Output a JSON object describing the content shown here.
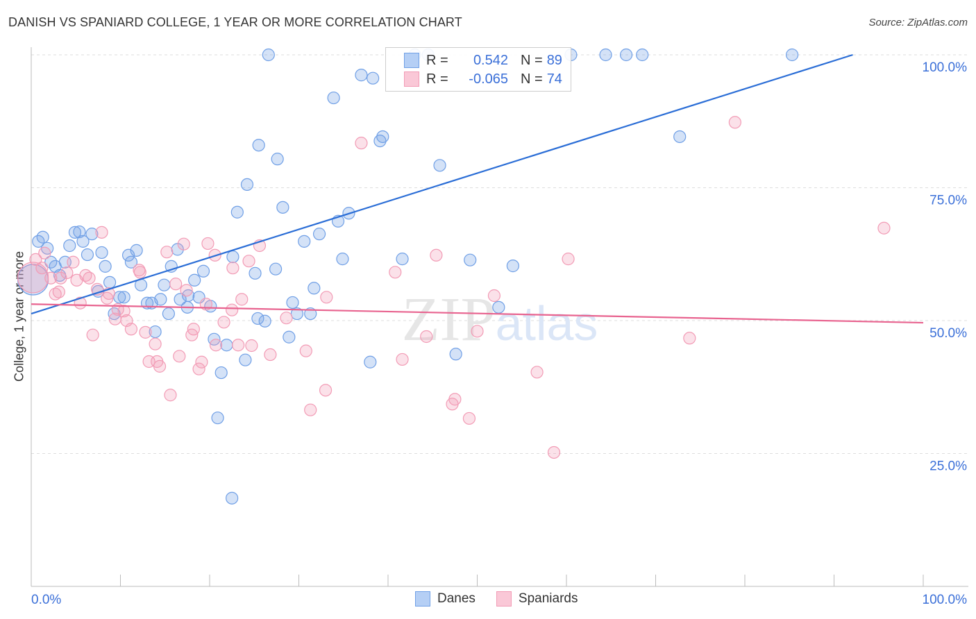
{
  "chart_data": {
    "type": "scatter",
    "title": "DANISH VS SPANIARD COLLEGE, 1 YEAR OR MORE CORRELATION CHART",
    "source": "Source: ZipAtlas.com",
    "xlabel": "",
    "ylabel": "College, 1 year or more",
    "xlim": [
      0,
      100
    ],
    "ylim": [
      0,
      100
    ],
    "x_tick_labels": [
      "0.0%",
      "100.0%"
    ],
    "y_tick_labels": [
      {
        "value": 100,
        "label": "100.0%"
      },
      {
        "value": 75,
        "label": "75.0%"
      },
      {
        "value": 50,
        "label": "50.0%"
      },
      {
        "value": 25,
        "label": "25.0%"
      }
    ],
    "grid": true,
    "legend_placement": "top-center",
    "watermark": "ZIPatlas",
    "series": [
      {
        "name": "Danes",
        "color": "#6f9fe6",
        "line_color": "#2a6dd6",
        "R": "0.542",
        "N": "89",
        "trend": [
          [
            0,
            51.3
          ],
          [
            92.1,
            100
          ]
        ],
        "points": [
          [
            26.6,
            100
          ],
          [
            43.0,
            100
          ],
          [
            44.5,
            100
          ],
          [
            60.5,
            100
          ],
          [
            64.4,
            100
          ],
          [
            66.7,
            100
          ],
          [
            68.5,
            100
          ],
          [
            85.3,
            100
          ],
          [
            37.0,
            96.2
          ],
          [
            38.3,
            95.6
          ],
          [
            33.9,
            91.9
          ],
          [
            25.5,
            83.0
          ],
          [
            39.4,
            84.6
          ],
          [
            39.1,
            83.8
          ],
          [
            27.6,
            80.4
          ],
          [
            45.8,
            79.2
          ],
          [
            72.7,
            84.6
          ],
          [
            24.2,
            75.6
          ],
          [
            23.1,
            70.4
          ],
          [
            28.2,
            71.3
          ],
          [
            35.6,
            70.2
          ],
          [
            34.4,
            68.7
          ],
          [
            32.3,
            66.3
          ],
          [
            30.6,
            64.9
          ],
          [
            0.8,
            64.9
          ],
          [
            1.3,
            65.7
          ],
          [
            1.8,
            63.6
          ],
          [
            4.3,
            64.1
          ],
          [
            4.9,
            66.6
          ],
          [
            5.4,
            66.7
          ],
          [
            5.8,
            64.9
          ],
          [
            6.8,
            66.3
          ],
          [
            7.9,
            62.8
          ],
          [
            6.3,
            62.4
          ],
          [
            8.3,
            60.2
          ],
          [
            10.9,
            62.3
          ],
          [
            11.8,
            63.2
          ],
          [
            11.2,
            61.0
          ],
          [
            3.8,
            61.0
          ],
          [
            2.7,
            60.2
          ],
          [
            2.2,
            61.0
          ],
          [
            3.2,
            58.5
          ],
          [
            15.7,
            60.2
          ],
          [
            16.4,
            63.4
          ],
          [
            19.3,
            59.3
          ],
          [
            22.6,
            62.0
          ],
          [
            25.1,
            58.9
          ],
          [
            27.4,
            59.7
          ],
          [
            34.9,
            61.6
          ],
          [
            41.6,
            61.6
          ],
          [
            49.2,
            61.4
          ],
          [
            54.0,
            60.3
          ],
          [
            7.5,
            55.5
          ],
          [
            8.8,
            57.2
          ],
          [
            9.9,
            54.4
          ],
          [
            10.4,
            54.4
          ],
          [
            12.3,
            56.7
          ],
          [
            14.9,
            56.7
          ],
          [
            18.3,
            57.6
          ],
          [
            17.6,
            54.7
          ],
          [
            16.7,
            54.0
          ],
          [
            18.8,
            54.4
          ],
          [
            13.0,
            53.3
          ],
          [
            13.5,
            53.3
          ],
          [
            14.5,
            54.0
          ],
          [
            20.1,
            52.7
          ],
          [
            17.5,
            52.5
          ],
          [
            15.4,
            51.3
          ],
          [
            9.3,
            51.3
          ],
          [
            13.9,
            47.9
          ],
          [
            31.7,
            56.1
          ],
          [
            29.3,
            53.4
          ],
          [
            29.8,
            51.3
          ],
          [
            31.3,
            51.3
          ],
          [
            25.4,
            50.4
          ],
          [
            26.2,
            49.9
          ],
          [
            28.9,
            46.9
          ],
          [
            20.5,
            46.5
          ],
          [
            21.9,
            45.4
          ],
          [
            24.0,
            42.6
          ],
          [
            21.3,
            40.2
          ],
          [
            38.0,
            42.2
          ],
          [
            47.6,
            43.7
          ],
          [
            52.4,
            52.5
          ],
          [
            20.9,
            31.7
          ],
          [
            22.5,
            16.6
          ],
          [
            0.2,
            57.7,
            "large"
          ]
        ]
      },
      {
        "name": "Spaniards",
        "color": "#f29bb5",
        "line_color": "#e8638f",
        "R": "-0.065",
        "N": "74",
        "trend": [
          [
            0,
            53.1
          ],
          [
            100,
            49.6
          ]
        ],
        "points": [
          [
            78.9,
            87.3
          ],
          [
            37.0,
            83.4
          ],
          [
            95.6,
            67.4
          ],
          [
            7.9,
            66.6
          ],
          [
            19.8,
            64.5
          ],
          [
            17.1,
            64.4
          ],
          [
            15.2,
            62.9
          ],
          [
            20.6,
            62.3
          ],
          [
            25.6,
            64.1
          ],
          [
            24.4,
            61.2
          ],
          [
            22.6,
            59.9
          ],
          [
            45.4,
            62.3
          ],
          [
            60.2,
            61.6
          ],
          [
            40.8,
            59.1
          ],
          [
            12.1,
            59.5
          ],
          [
            12.2,
            59.1
          ],
          [
            1.5,
            62.7
          ],
          [
            0.5,
            61.5
          ],
          [
            2.2,
            58.0
          ],
          [
            4.0,
            59.0
          ],
          [
            4.7,
            61.0
          ],
          [
            6.1,
            58.5
          ],
          [
            6.5,
            58.0
          ],
          [
            5.1,
            57.6
          ],
          [
            1.2,
            59.9
          ],
          [
            3.3,
            58.0
          ],
          [
            3.1,
            55.4
          ],
          [
            2.7,
            55.0
          ],
          [
            7.4,
            55.9
          ],
          [
            8.7,
            55.1
          ],
          [
            8.5,
            54.2
          ],
          [
            9.7,
            52.1
          ],
          [
            10.4,
            51.8
          ],
          [
            9.4,
            50.3
          ],
          [
            10.7,
            50.0
          ],
          [
            11.2,
            48.4
          ],
          [
            5.5,
            53.3
          ],
          [
            6.9,
            47.3
          ],
          [
            12.8,
            47.8
          ],
          [
            13.9,
            45.6
          ],
          [
            14.1,
            42.3
          ],
          [
            13.2,
            42.3
          ],
          [
            14.4,
            41.4
          ],
          [
            15.6,
            36.0
          ],
          [
            16.6,
            43.3
          ],
          [
            17.4,
            55.7
          ],
          [
            18.2,
            48.4
          ],
          [
            18.0,
            47.3
          ],
          [
            19.1,
            42.2
          ],
          [
            18.8,
            40.9
          ],
          [
            16.2,
            56.9
          ],
          [
            19.6,
            53.1
          ],
          [
            20.7,
            45.4
          ],
          [
            21.6,
            49.7
          ],
          [
            22.5,
            52.0
          ],
          [
            23.6,
            54.0
          ],
          [
            23.2,
            45.4
          ],
          [
            24.7,
            45.3
          ],
          [
            26.8,
            43.6
          ],
          [
            28.6,
            50.5
          ],
          [
            30.8,
            44.3
          ],
          [
            33.1,
            54.4
          ],
          [
            33.0,
            36.9
          ],
          [
            31.3,
            33.2
          ],
          [
            41.6,
            42.7
          ],
          [
            44.3,
            47.0
          ],
          [
            47.2,
            34.3
          ],
          [
            47.5,
            35.2
          ],
          [
            49.1,
            31.6
          ],
          [
            50.0,
            48.0
          ],
          [
            51.9,
            54.7
          ],
          [
            56.7,
            40.3
          ],
          [
            58.6,
            25.2
          ],
          [
            73.8,
            46.7
          ],
          [
            0.2,
            58.1,
            "large"
          ]
        ]
      }
    ]
  },
  "legend": {
    "r_label": "R =",
    "n_label": "N ="
  }
}
